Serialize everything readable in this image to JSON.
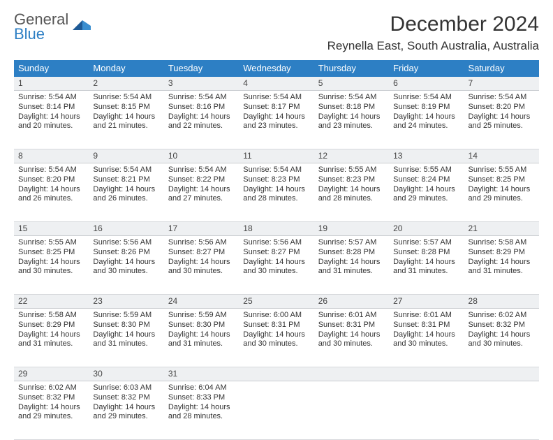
{
  "brand": {
    "top": "General",
    "bottom": "Blue"
  },
  "title": "December 2024",
  "location": "Reynella East, South Australia, Australia",
  "colors": {
    "header_bg": "#2d7fc4",
    "header_fg": "#ffffff",
    "daynum_bg": "#eef0f2",
    "daynum_border_top": "#2d7fc4",
    "daynum_border_bottom": "#c9ccd0",
    "body_border": "#d6d8db",
    "page_bg": "#ffffff",
    "text": "#333333",
    "logo_top": "#5a5a5a",
    "logo_bottom": "#2d7fc4"
  },
  "columns": [
    "Sunday",
    "Monday",
    "Tuesday",
    "Wednesday",
    "Thursday",
    "Friday",
    "Saturday"
  ],
  "weeks": [
    [
      {
        "n": "1",
        "sr": "5:54 AM",
        "ss": "8:14 PM",
        "dl": "14 hours and 20 minutes."
      },
      {
        "n": "2",
        "sr": "5:54 AM",
        "ss": "8:15 PM",
        "dl": "14 hours and 21 minutes."
      },
      {
        "n": "3",
        "sr": "5:54 AM",
        "ss": "8:16 PM",
        "dl": "14 hours and 22 minutes."
      },
      {
        "n": "4",
        "sr": "5:54 AM",
        "ss": "8:17 PM",
        "dl": "14 hours and 23 minutes."
      },
      {
        "n": "5",
        "sr": "5:54 AM",
        "ss": "8:18 PM",
        "dl": "14 hours and 23 minutes."
      },
      {
        "n": "6",
        "sr": "5:54 AM",
        "ss": "8:19 PM",
        "dl": "14 hours and 24 minutes."
      },
      {
        "n": "7",
        "sr": "5:54 AM",
        "ss": "8:20 PM",
        "dl": "14 hours and 25 minutes."
      }
    ],
    [
      {
        "n": "8",
        "sr": "5:54 AM",
        "ss": "8:20 PM",
        "dl": "14 hours and 26 minutes."
      },
      {
        "n": "9",
        "sr": "5:54 AM",
        "ss": "8:21 PM",
        "dl": "14 hours and 26 minutes."
      },
      {
        "n": "10",
        "sr": "5:54 AM",
        "ss": "8:22 PM",
        "dl": "14 hours and 27 minutes."
      },
      {
        "n": "11",
        "sr": "5:54 AM",
        "ss": "8:23 PM",
        "dl": "14 hours and 28 minutes."
      },
      {
        "n": "12",
        "sr": "5:55 AM",
        "ss": "8:23 PM",
        "dl": "14 hours and 28 minutes."
      },
      {
        "n": "13",
        "sr": "5:55 AM",
        "ss": "8:24 PM",
        "dl": "14 hours and 29 minutes."
      },
      {
        "n": "14",
        "sr": "5:55 AM",
        "ss": "8:25 PM",
        "dl": "14 hours and 29 minutes."
      }
    ],
    [
      {
        "n": "15",
        "sr": "5:55 AM",
        "ss": "8:25 PM",
        "dl": "14 hours and 30 minutes."
      },
      {
        "n": "16",
        "sr": "5:56 AM",
        "ss": "8:26 PM",
        "dl": "14 hours and 30 minutes."
      },
      {
        "n": "17",
        "sr": "5:56 AM",
        "ss": "8:27 PM",
        "dl": "14 hours and 30 minutes."
      },
      {
        "n": "18",
        "sr": "5:56 AM",
        "ss": "8:27 PM",
        "dl": "14 hours and 30 minutes."
      },
      {
        "n": "19",
        "sr": "5:57 AM",
        "ss": "8:28 PM",
        "dl": "14 hours and 31 minutes."
      },
      {
        "n": "20",
        "sr": "5:57 AM",
        "ss": "8:28 PM",
        "dl": "14 hours and 31 minutes."
      },
      {
        "n": "21",
        "sr": "5:58 AM",
        "ss": "8:29 PM",
        "dl": "14 hours and 31 minutes."
      }
    ],
    [
      {
        "n": "22",
        "sr": "5:58 AM",
        "ss": "8:29 PM",
        "dl": "14 hours and 31 minutes."
      },
      {
        "n": "23",
        "sr": "5:59 AM",
        "ss": "8:30 PM",
        "dl": "14 hours and 31 minutes."
      },
      {
        "n": "24",
        "sr": "5:59 AM",
        "ss": "8:30 PM",
        "dl": "14 hours and 31 minutes."
      },
      {
        "n": "25",
        "sr": "6:00 AM",
        "ss": "8:31 PM",
        "dl": "14 hours and 30 minutes."
      },
      {
        "n": "26",
        "sr": "6:01 AM",
        "ss": "8:31 PM",
        "dl": "14 hours and 30 minutes."
      },
      {
        "n": "27",
        "sr": "6:01 AM",
        "ss": "8:31 PM",
        "dl": "14 hours and 30 minutes."
      },
      {
        "n": "28",
        "sr": "6:02 AM",
        "ss": "8:32 PM",
        "dl": "14 hours and 30 minutes."
      }
    ],
    [
      {
        "n": "29",
        "sr": "6:02 AM",
        "ss": "8:32 PM",
        "dl": "14 hours and 29 minutes."
      },
      {
        "n": "30",
        "sr": "6:03 AM",
        "ss": "8:32 PM",
        "dl": "14 hours and 29 minutes."
      },
      {
        "n": "31",
        "sr": "6:04 AM",
        "ss": "8:33 PM",
        "dl": "14 hours and 28 minutes."
      },
      null,
      null,
      null,
      null
    ]
  ],
  "labels": {
    "sunrise": "Sunrise: ",
    "sunset": "Sunset: ",
    "daylight": "Daylight: "
  }
}
